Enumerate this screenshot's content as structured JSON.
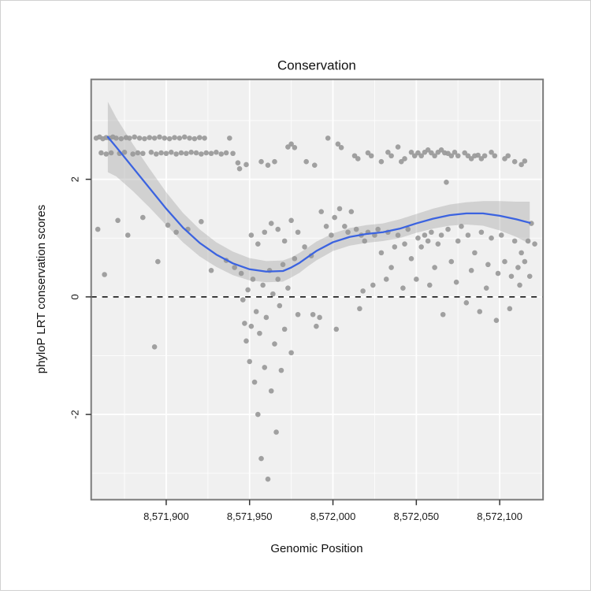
{
  "chart_data": {
    "type": "scatter",
    "title": "Conservation",
    "xlabel": "Genomic Position",
    "ylabel": "phyloP LRT conservation scores",
    "xlim": [
      8571855,
      8572126
    ],
    "ylim": [
      -3.45,
      3.7
    ],
    "grid": true,
    "legend": "none",
    "x_ticks": [
      {
        "value": 8571900,
        "label": "8,571,900"
      },
      {
        "value": 8571950,
        "label": "8,571,950"
      },
      {
        "value": 8572000,
        "label": "8,572,000"
      },
      {
        "value": 8572050,
        "label": "8,572,050"
      },
      {
        "value": 8572100,
        "label": "8,572,100"
      }
    ],
    "x_minor_ticks": [
      8571875,
      8571925,
      8571975,
      8572025,
      8572075,
      8572125
    ],
    "y_ticks": [
      {
        "value": -2,
        "label": "-2"
      },
      {
        "value": 0,
        "label": "0"
      },
      {
        "value": 2,
        "label": "2"
      }
    ],
    "y_minor_ticks": [
      -3,
      -1,
      1,
      3
    ],
    "reference_line_y": 0,
    "colors": {
      "point": "#9b9b9b",
      "smooth_line": "#3b63e0",
      "band": "#999999",
      "reference_line": "#000000",
      "panel_background": "#f0f0f0",
      "gridline": "#ffffff",
      "panel_border": "#7a7a7a",
      "tick": "#333333"
    },
    "smooth": [
      [
        8571865,
        2.72,
        2.12,
        3.32
      ],
      [
        8571870,
        2.55,
        2.05,
        3.05
      ],
      [
        8571880,
        2.2,
        1.8,
        2.6
      ],
      [
        8571890,
        1.85,
        1.52,
        2.18
      ],
      [
        8571900,
        1.5,
        1.22,
        1.78
      ],
      [
        8571910,
        1.18,
        0.93,
        1.43
      ],
      [
        8571920,
        0.92,
        0.69,
        1.15
      ],
      [
        8571930,
        0.72,
        0.51,
        0.93
      ],
      [
        8571940,
        0.57,
        0.37,
        0.77
      ],
      [
        8571950,
        0.47,
        0.28,
        0.66
      ],
      [
        8571960,
        0.43,
        0.25,
        0.61
      ],
      [
        8571970,
        0.44,
        0.26,
        0.62
      ],
      [
        8571975,
        0.5,
        0.33,
        0.67
      ],
      [
        8571980,
        0.58,
        0.41,
        0.75
      ],
      [
        8571985,
        0.68,
        0.52,
        0.84
      ],
      [
        8571990,
        0.78,
        0.62,
        0.94
      ],
      [
        8572000,
        0.93,
        0.78,
        1.08
      ],
      [
        8572010,
        1.02,
        0.87,
        1.17
      ],
      [
        8572020,
        1.07,
        0.92,
        1.22
      ],
      [
        8572030,
        1.1,
        0.95,
        1.25
      ],
      [
        8572040,
        1.16,
        1.0,
        1.32
      ],
      [
        8572050,
        1.25,
        1.09,
        1.41
      ],
      [
        8572060,
        1.33,
        1.16,
        1.5
      ],
      [
        8572070,
        1.39,
        1.21,
        1.57
      ],
      [
        8572080,
        1.42,
        1.23,
        1.61
      ],
      [
        8572090,
        1.42,
        1.21,
        1.63
      ],
      [
        8572100,
        1.38,
        1.13,
        1.63
      ],
      [
        8572110,
        1.32,
        1.02,
        1.62
      ],
      [
        8572118,
        1.26,
        0.9,
        1.62
      ]
    ],
    "points": [
      [
        8571858,
        2.7
      ],
      [
        8571860,
        2.72
      ],
      [
        8571862,
        2.69
      ],
      [
        8571864,
        2.71
      ],
      [
        8571866,
        2.7
      ],
      [
        8571868,
        2.72
      ],
      [
        8571870,
        2.7
      ],
      [
        8571873,
        2.69
      ],
      [
        8571876,
        2.71
      ],
      [
        8571878,
        2.7
      ],
      [
        8571881,
        2.72
      ],
      [
        8571884,
        2.7
      ],
      [
        8571887,
        2.69
      ],
      [
        8571890,
        2.71
      ],
      [
        8571893,
        2.7
      ],
      [
        8571896,
        2.72
      ],
      [
        8571899,
        2.7
      ],
      [
        8571902,
        2.69
      ],
      [
        8571905,
        2.71
      ],
      [
        8571908,
        2.7
      ],
      [
        8571911,
        2.72
      ],
      [
        8571914,
        2.7
      ],
      [
        8571917,
        2.69
      ],
      [
        8571920,
        2.71
      ],
      [
        8571923,
        2.7
      ],
      [
        8571938,
        2.7
      ],
      [
        8571861,
        2.45
      ],
      [
        8571864,
        2.43
      ],
      [
        8571867,
        2.45
      ],
      [
        8571872,
        2.44
      ],
      [
        8571875,
        2.46
      ],
      [
        8571880,
        2.43
      ],
      [
        8571883,
        2.45
      ],
      [
        8571886,
        2.44
      ],
      [
        8571891,
        2.46
      ],
      [
        8571894,
        2.43
      ],
      [
        8571897,
        2.45
      ],
      [
        8571900,
        2.44
      ],
      [
        8571903,
        2.46
      ],
      [
        8571906,
        2.43
      ],
      [
        8571909,
        2.45
      ],
      [
        8571912,
        2.44
      ],
      [
        8571915,
        2.46
      ],
      [
        8571918,
        2.45
      ],
      [
        8571921,
        2.43
      ],
      [
        8571924,
        2.45
      ],
      [
        8571927,
        2.44
      ],
      [
        8571930,
        2.46
      ],
      [
        8571933,
        2.43
      ],
      [
        8571936,
        2.45
      ],
      [
        8571940,
        2.44
      ],
      [
        8571859,
        1.15
      ],
      [
        8571863,
        0.38
      ],
      [
        8571871,
        1.3
      ],
      [
        8571877,
        1.05
      ],
      [
        8571886,
        1.35
      ],
      [
        8571893,
        -0.85
      ],
      [
        8571895,
        0.6
      ],
      [
        8571901,
        1.22
      ],
      [
        8571906,
        1.1
      ],
      [
        8571913,
        1.15
      ],
      [
        8571921,
        1.28
      ],
      [
        8571927,
        0.45
      ],
      [
        8571936,
        0.62
      ],
      [
        8571941,
        0.5
      ],
      [
        8571943,
        2.28
      ],
      [
        8571944,
        2.18
      ],
      [
        8571945,
        0.4
      ],
      [
        8571946,
        -0.05
      ],
      [
        8571947,
        -0.45
      ],
      [
        8571948,
        -0.75
      ],
      [
        8571949,
        0.12
      ],
      [
        8571950,
        -1.1
      ],
      [
        8571951,
        -0.5
      ],
      [
        8571952,
        0.3
      ],
      [
        8571953,
        -1.45
      ],
      [
        8571954,
        -0.25
      ],
      [
        8571955,
        -2.0
      ],
      [
        8571956,
        -0.62
      ],
      [
        8571957,
        -2.75
      ],
      [
        8571958,
        0.2
      ],
      [
        8571959,
        -1.2
      ],
      [
        8571960,
        -0.35
      ],
      [
        8571961,
        -3.1
      ],
      [
        8571962,
        0.45
      ],
      [
        8571963,
        -1.6
      ],
      [
        8571964,
        0.05
      ],
      [
        8571965,
        -0.8
      ],
      [
        8571966,
        -2.3
      ],
      [
        8571967,
        0.3
      ],
      [
        8571968,
        -0.15
      ],
      [
        8571969,
        -1.25
      ],
      [
        8571970,
        0.55
      ],
      [
        8571971,
        -0.55
      ],
      [
        8571973,
        0.15
      ],
      [
        8571975,
        -0.95
      ],
      [
        8571977,
        0.65
      ],
      [
        8571979,
        -0.3
      ],
      [
        8571951,
        1.05
      ],
      [
        8571955,
        0.9
      ],
      [
        8571959,
        1.1
      ],
      [
        8571963,
        1.25
      ],
      [
        8571967,
        1.15
      ],
      [
        8571971,
        0.95
      ],
      [
        8571975,
        1.3
      ],
      [
        8571979,
        1.1
      ],
      [
        8571983,
        0.85
      ],
      [
        8571987,
        0.7
      ],
      [
        8571948,
        2.25
      ],
      [
        8571957,
        2.3
      ],
      [
        8571961,
        2.24
      ],
      [
        8571965,
        2.3
      ],
      [
        8571973,
        2.55
      ],
      [
        8571975,
        2.6
      ],
      [
        8571977,
        2.54
      ],
      [
        8571984,
        2.3
      ],
      [
        8571989,
        2.24
      ],
      [
        8571993,
        1.45
      ],
      [
        8571996,
        1.2
      ],
      [
        8571999,
        1.05
      ],
      [
        8572001,
        1.35
      ],
      [
        8572004,
        1.5
      ],
      [
        8572007,
        1.2
      ],
      [
        8572009,
        1.1
      ],
      [
        8572011,
        1.45
      ],
      [
        8572014,
        1.15
      ],
      [
        8572017,
        1.05
      ],
      [
        8571997,
        2.7
      ],
      [
        8572003,
        2.6
      ],
      [
        8572005,
        2.54
      ],
      [
        8572013,
        2.4
      ],
      [
        8572015,
        2.35
      ],
      [
        8572021,
        2.45
      ],
      [
        8572023,
        2.4
      ],
      [
        8572029,
        2.3
      ],
      [
        8572033,
        2.46
      ],
      [
        8572035,
        2.4
      ],
      [
        8572039,
        2.55
      ],
      [
        8572041,
        2.3
      ],
      [
        8572043,
        2.35
      ],
      [
        8572047,
        2.46
      ],
      [
        8572049,
        2.4
      ],
      [
        8572051,
        2.45
      ],
      [
        8572053,
        2.4
      ],
      [
        8572055,
        2.46
      ],
      [
        8572057,
        2.5
      ],
      [
        8572059,
        2.45
      ],
      [
        8572061,
        2.4
      ],
      [
        8572063,
        2.46
      ],
      [
        8572065,
        2.5
      ],
      [
        8572067,
        2.45
      ],
      [
        8572069,
        2.44
      ],
      [
        8572071,
        2.4
      ],
      [
        8572073,
        2.46
      ],
      [
        8572075,
        2.4
      ],
      [
        8572079,
        2.45
      ],
      [
        8572081,
        2.4
      ],
      [
        8572083,
        2.35
      ],
      [
        8572085,
        2.4
      ],
      [
        8572087,
        2.41
      ],
      [
        8572089,
        2.35
      ],
      [
        8572091,
        2.4
      ],
      [
        8572095,
        2.46
      ],
      [
        8572097,
        2.4
      ],
      [
        8572103,
        2.35
      ],
      [
        8572105,
        2.4
      ],
      [
        8572109,
        2.3
      ],
      [
        8572113,
        2.25
      ],
      [
        8572115,
        2.31
      ],
      [
        8572068,
        1.95
      ],
      [
        8572019,
        0.95
      ],
      [
        8572021,
        1.1
      ],
      [
        8572025,
        1.05
      ],
      [
        8572027,
        1.15
      ],
      [
        8572029,
        0.75
      ],
      [
        8572033,
        1.1
      ],
      [
        8572035,
        0.5
      ],
      [
        8572037,
        0.85
      ],
      [
        8572039,
        1.05
      ],
      [
        8572043,
        0.9
      ],
      [
        8572045,
        1.15
      ],
      [
        8572047,
        0.65
      ],
      [
        8572051,
        1.0
      ],
      [
        8572053,
        0.85
      ],
      [
        8572055,
        1.05
      ],
      [
        8572057,
        0.95
      ],
      [
        8572059,
        1.1
      ],
      [
        8572061,
        0.5
      ],
      [
        8572063,
        0.9
      ],
      [
        8572065,
        1.05
      ],
      [
        8572069,
        1.15
      ],
      [
        8572071,
        0.6
      ],
      [
        8572075,
        0.95
      ],
      [
        8572077,
        1.2
      ],
      [
        8572081,
        1.05
      ],
      [
        8572083,
        0.45
      ],
      [
        8572085,
        0.75
      ],
      [
        8572089,
        1.1
      ],
      [
        8572093,
        0.55
      ],
      [
        8572095,
        1.0
      ],
      [
        8572099,
        0.4
      ],
      [
        8572101,
        1.05
      ],
      [
        8572103,
        0.6
      ],
      [
        8572107,
        0.35
      ],
      [
        8572109,
        0.95
      ],
      [
        8572111,
        0.5
      ],
      [
        8572113,
        0.75
      ],
      [
        8572115,
        0.6
      ],
      [
        8572117,
        0.95
      ],
      [
        8572119,
        1.25
      ],
      [
        8572121,
        0.9
      ],
      [
        8571988,
        -0.3
      ],
      [
        8571990,
        -0.5
      ],
      [
        8571992,
        -0.35
      ],
      [
        8572002,
        -0.55
      ],
      [
        8572016,
        -0.2
      ],
      [
        8572018,
        0.1
      ],
      [
        8572024,
        0.2
      ],
      [
        8572032,
        0.3
      ],
      [
        8572042,
        0.15
      ],
      [
        8572050,
        0.3
      ],
      [
        8572058,
        0.2
      ],
      [
        8572066,
        -0.3
      ],
      [
        8572074,
        0.25
      ],
      [
        8572080,
        -0.1
      ],
      [
        8572088,
        -0.25
      ],
      [
        8572092,
        0.15
      ],
      [
        8572098,
        -0.4
      ],
      [
        8572106,
        -0.2
      ],
      [
        8572112,
        0.2
      ],
      [
        8572118,
        0.35
      ]
    ]
  }
}
